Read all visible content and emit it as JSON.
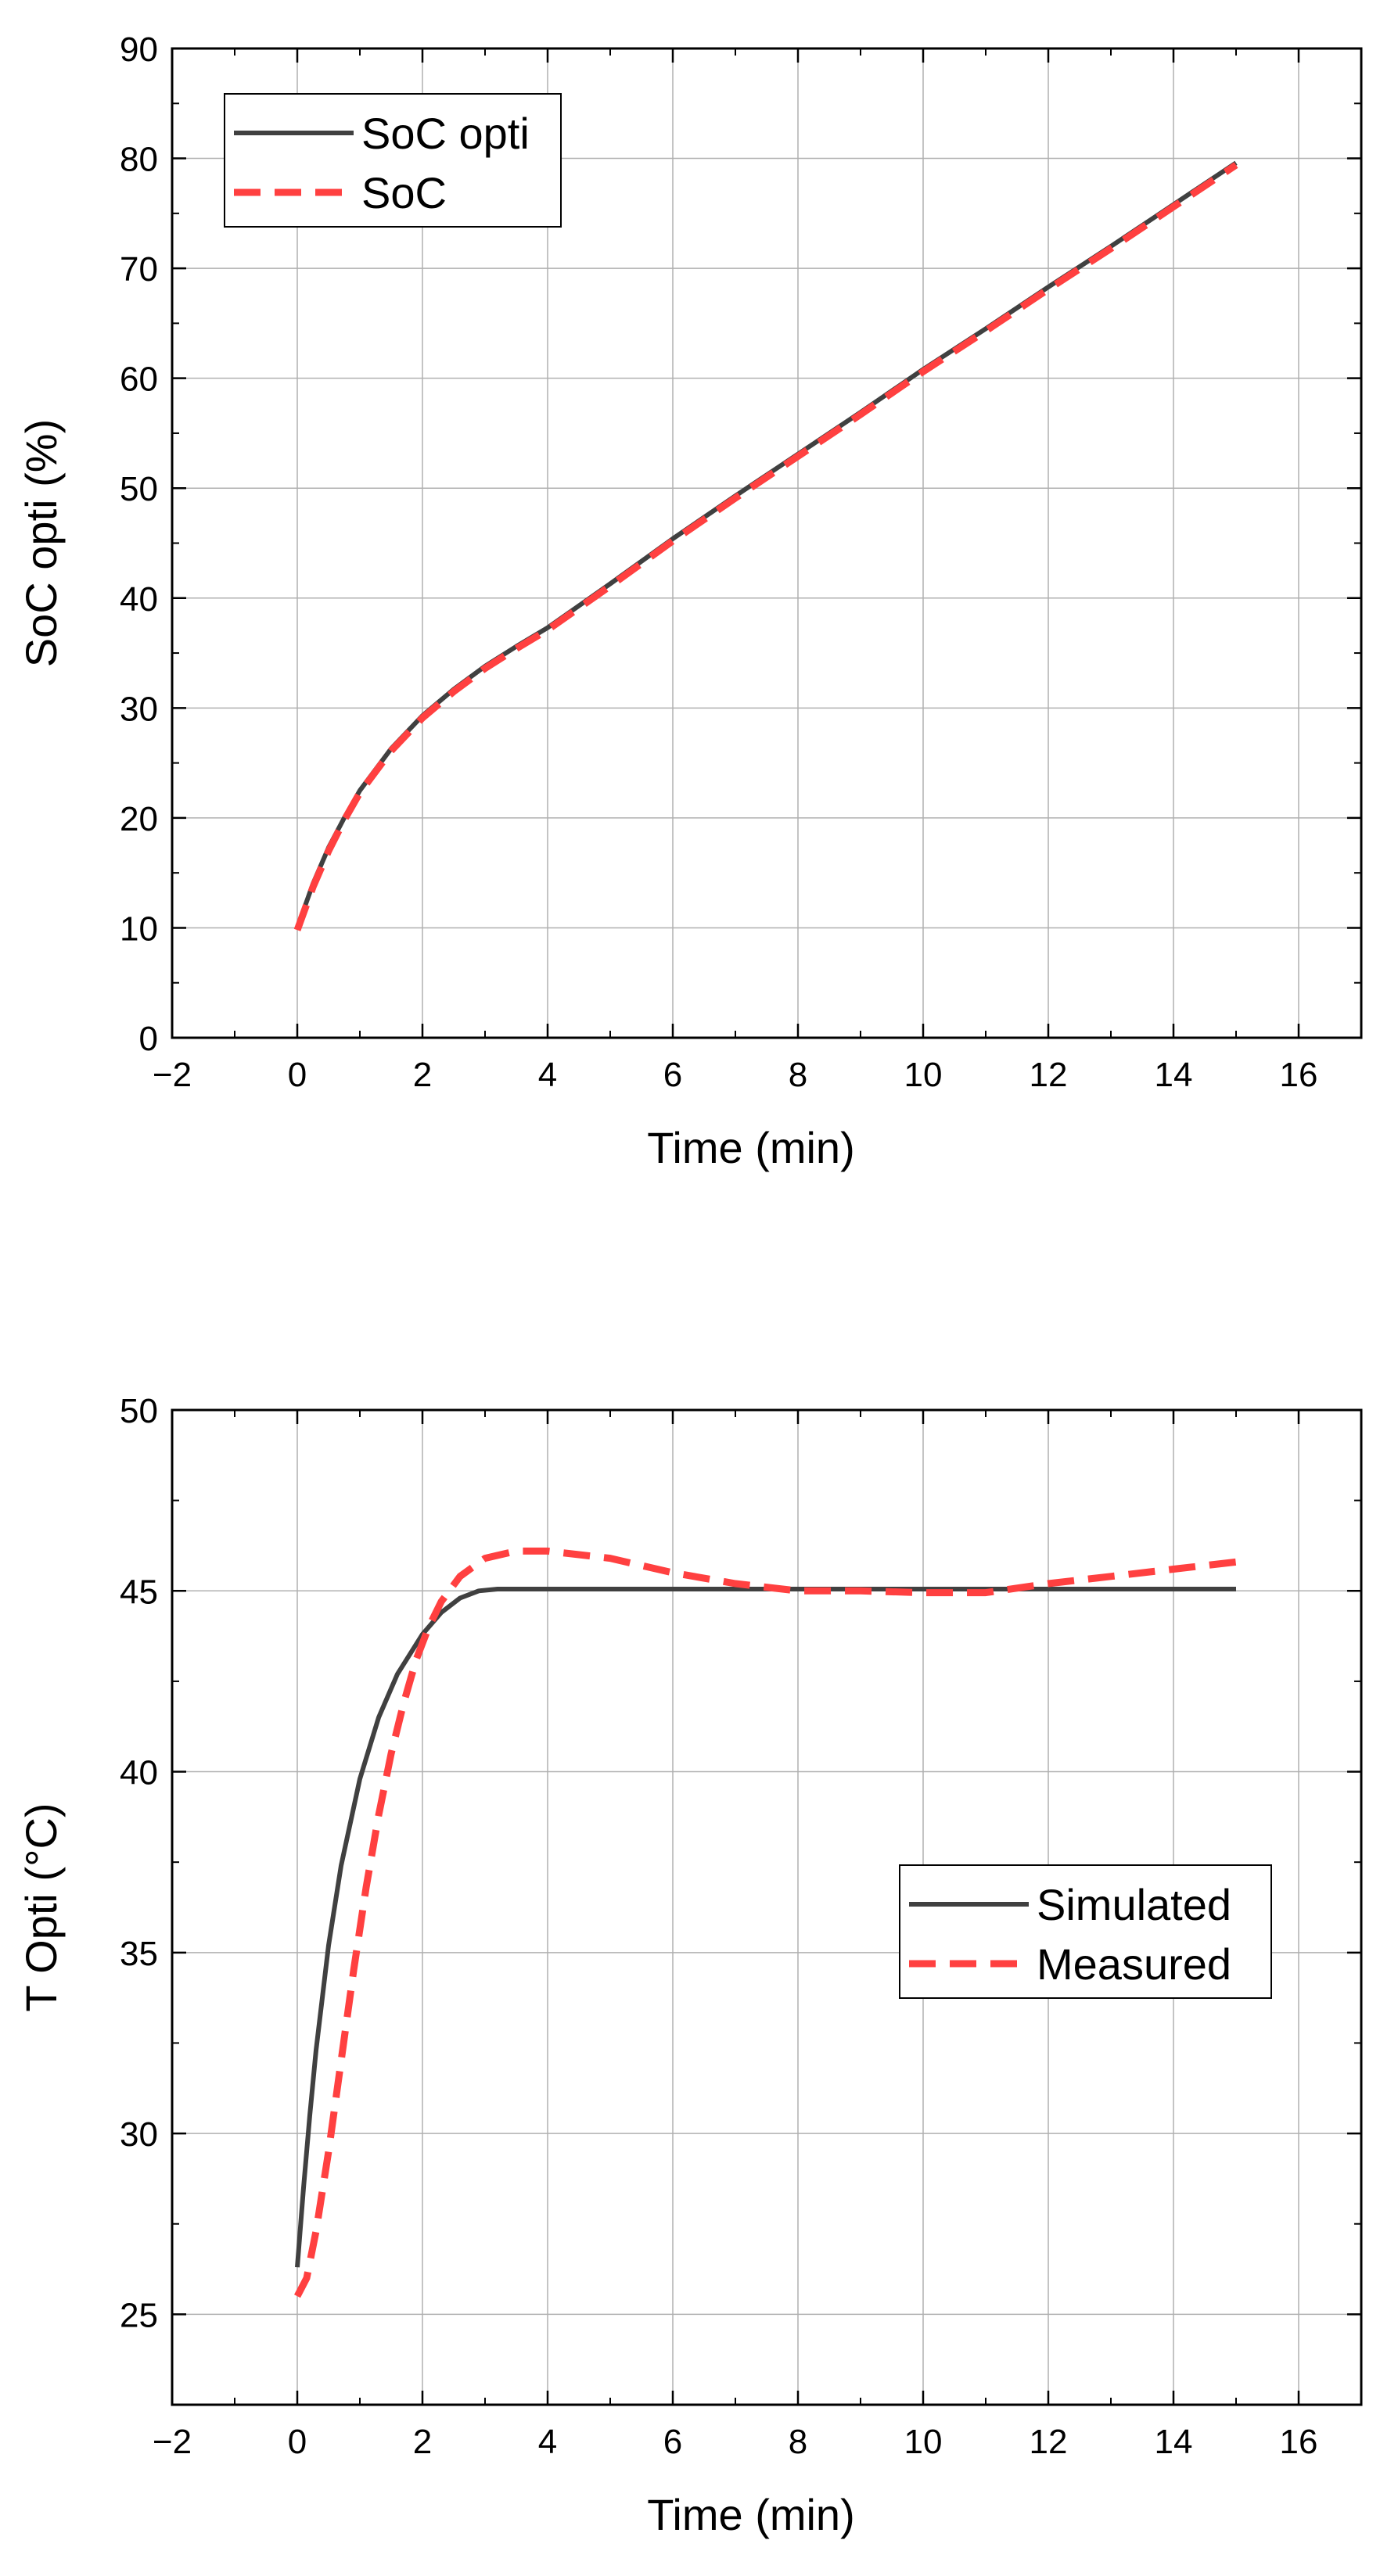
{
  "chart_data": [
    {
      "type": "line",
      "title": "",
      "xlabel": "Time (min)",
      "ylabel": "SoC opti (%)",
      "xlim": [
        -2,
        17
      ],
      "ylim": [
        0,
        90
      ],
      "xticks": [
        -2,
        0,
        2,
        4,
        6,
        8,
        10,
        12,
        14,
        16
      ],
      "xtick_labels": [
        "−2",
        "0",
        "2",
        "4",
        "6",
        "8",
        "10",
        "12",
        "14",
        "16"
      ],
      "yticks": [
        0,
        10,
        20,
        30,
        40,
        50,
        60,
        70,
        80,
        90
      ],
      "ytick_labels": [
        "0",
        "10",
        "20",
        "30",
        "40",
        "50",
        "60",
        "70",
        "80",
        "90"
      ],
      "grid": true,
      "legend_position": "top-left",
      "series": [
        {
          "name": "SoC opti",
          "color": "#404040",
          "style": "solid",
          "x": [
            0,
            0.25,
            0.5,
            0.75,
            1,
            1.5,
            2,
            2.5,
            3,
            3.5,
            4,
            5,
            6,
            7,
            8,
            9,
            10,
            11,
            12,
            13,
            14,
            15
          ],
          "y": [
            10,
            14,
            17.3,
            20,
            22.5,
            26.3,
            29.3,
            31.7,
            33.8,
            35.6,
            37.3,
            41.3,
            45.4,
            49.3,
            53.1,
            56.9,
            60.8,
            64.5,
            68.3,
            72.0,
            75.8,
            79.6
          ]
        },
        {
          "name": "SoC",
          "color": "#ff4040",
          "style": "dashed",
          "x": [
            0,
            0.25,
            0.5,
            0.75,
            1,
            1.5,
            2,
            2.5,
            3,
            3.5,
            4,
            5,
            6,
            7,
            8,
            9,
            10,
            11,
            12,
            13,
            14,
            15
          ],
          "y": [
            9.8,
            13.7,
            17,
            19.8,
            22.3,
            26.1,
            29.1,
            31.5,
            33.6,
            35.4,
            37.1,
            41.1,
            45.2,
            49.1,
            52.9,
            56.7,
            60.6,
            64.3,
            68.1,
            71.8,
            75.6,
            79.4
          ]
        }
      ]
    },
    {
      "type": "line",
      "title": "",
      "xlabel": "Time (min)",
      "ylabel": "T Opti (°C)",
      "xlim": [
        -2,
        17
      ],
      "ylim": [
        22.5,
        50
      ],
      "xticks": [
        -2,
        0,
        2,
        4,
        6,
        8,
        10,
        12,
        14,
        16
      ],
      "xtick_labels": [
        "−2",
        "0",
        "2",
        "4",
        "6",
        "8",
        "10",
        "12",
        "14",
        "16"
      ],
      "yticks": [
        25,
        30,
        35,
        40,
        45,
        50
      ],
      "ytick_labels": [
        "25",
        "30",
        "35",
        "40",
        "45",
        "50"
      ],
      "grid": true,
      "legend_position": "right",
      "series": [
        {
          "name": "Simulated",
          "color": "#404040",
          "style": "solid",
          "x": [
            0,
            0.1,
            0.2,
            0.3,
            0.5,
            0.7,
            1,
            1.3,
            1.6,
            2,
            2.3,
            2.6,
            2.9,
            3.2,
            3.5,
            4,
            6,
            8,
            10,
            12,
            14,
            15
          ],
          "y": [
            26.3,
            28.5,
            30.5,
            32.3,
            35.2,
            37.4,
            39.8,
            41.5,
            42.7,
            43.8,
            44.4,
            44.8,
            45.0,
            45.05,
            45.05,
            45.05,
            45.05,
            45.05,
            45.05,
            45.05,
            45.05,
            45.05
          ]
        },
        {
          "name": "Measured",
          "color": "#ff4040",
          "style": "dashed",
          "x": [
            0,
            0.15,
            0.3,
            0.5,
            0.7,
            0.9,
            1.1,
            1.3,
            1.5,
            1.7,
            1.9,
            2.1,
            2.3,
            2.6,
            3,
            3.5,
            4,
            4.5,
            5,
            5.5,
            6,
            7,
            8,
            9,
            10,
            11,
            12,
            13,
            14,
            15
          ],
          "y": [
            25.5,
            26.0,
            27.3,
            29.5,
            32.0,
            34.5,
            36.8,
            38.8,
            40.5,
            41.9,
            43.1,
            44.0,
            44.7,
            45.4,
            45.9,
            46.1,
            46.1,
            46.0,
            45.9,
            45.7,
            45.5,
            45.2,
            45.0,
            45.0,
            44.95,
            44.95,
            45.2,
            45.4,
            45.6,
            45.8
          ]
        }
      ]
    }
  ]
}
